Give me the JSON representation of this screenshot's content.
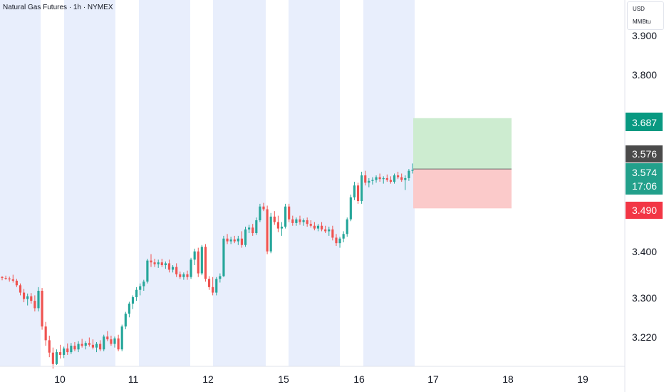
{
  "header": {
    "title": "Natural Gas Futures · 1h · NYMEX",
    "unit_currency": "USD",
    "unit_measure": "MMBtu"
  },
  "colors": {
    "up": "#26a69a",
    "down": "#ef5350",
    "session_band": "#e8eefc",
    "target_zone": "#cdecd0",
    "stop_zone": "#fbcaca",
    "target_label": "#089981",
    "stop_label": "#f23645",
    "entry_label": "#4a4a4a",
    "last_label": "#22a08b"
  },
  "chart_data": {
    "type": "candlestick",
    "timeframe": "1h",
    "x_tick_labels": [
      "10",
      "11",
      "12",
      "15",
      "16",
      "17",
      "18",
      "19"
    ],
    "y_tick_labels": [
      "3.900",
      "3.800",
      "3.400",
      "3.300",
      "3.220"
    ],
    "ylim": [
      3.145,
      3.945
    ],
    "grid": false,
    "price_labels": {
      "target": "3.687",
      "entry": "3.576",
      "last_price": "3.574",
      "countdown": "17:06",
      "stop": "3.490"
    },
    "position": {
      "direction": "long",
      "target": 3.687,
      "entry": 3.576,
      "stop": 3.49
    },
    "candles": [
      [
        3.34,
        3.342,
        3.333,
        3.338
      ],
      [
        3.338,
        3.343,
        3.334,
        3.337
      ],
      [
        3.337,
        3.341,
        3.33,
        3.335
      ],
      [
        3.335,
        3.345,
        3.328,
        3.332
      ],
      [
        3.332,
        3.336,
        3.318,
        3.322
      ],
      [
        3.322,
        3.326,
        3.3,
        3.306
      ],
      [
        3.306,
        3.314,
        3.285,
        3.292
      ],
      [
        3.292,
        3.304,
        3.278,
        3.298
      ],
      [
        3.298,
        3.305,
        3.282,
        3.288
      ],
      [
        3.288,
        3.3,
        3.265,
        3.272
      ],
      [
        3.272,
        3.318,
        3.265,
        3.31
      ],
      [
        3.31,
        3.316,
        3.225,
        3.232
      ],
      [
        3.232,
        3.242,
        3.19,
        3.202
      ],
      [
        3.202,
        3.212,
        3.165,
        3.175
      ],
      [
        3.175,
        3.186,
        3.14,
        3.15
      ],
      [
        3.15,
        3.182,
        3.148,
        3.176
      ],
      [
        3.176,
        3.192,
        3.162,
        3.17
      ],
      [
        3.17,
        3.188,
        3.163,
        3.184
      ],
      [
        3.184,
        3.195,
        3.17,
        3.176
      ],
      [
        3.176,
        3.196,
        3.172,
        3.19
      ],
      [
        3.19,
        3.198,
        3.178,
        3.182
      ],
      [
        3.182,
        3.2,
        3.176,
        3.194
      ],
      [
        3.194,
        3.205,
        3.186,
        3.19
      ],
      [
        3.19,
        3.2,
        3.182,
        3.196
      ],
      [
        3.196,
        3.208,
        3.188,
        3.192
      ],
      [
        3.192,
        3.204,
        3.182,
        3.186
      ],
      [
        3.186,
        3.198,
        3.176,
        3.194
      ],
      [
        3.194,
        3.202,
        3.178,
        3.182
      ],
      [
        3.182,
        3.214,
        3.178,
        3.21
      ],
      [
        3.21,
        3.222,
        3.2,
        3.204
      ],
      [
        3.204,
        3.212,
        3.19,
        3.194
      ],
      [
        3.194,
        3.21,
        3.186,
        3.206
      ],
      [
        3.206,
        3.214,
        3.178,
        3.182
      ],
      [
        3.182,
        3.236,
        3.178,
        3.232
      ],
      [
        3.232,
        3.264,
        3.226,
        3.26
      ],
      [
        3.26,
        3.286,
        3.252,
        3.282
      ],
      [
        3.282,
        3.3,
        3.27,
        3.296
      ],
      [
        3.296,
        3.318,
        3.288,
        3.312
      ],
      [
        3.312,
        3.326,
        3.3,
        3.32
      ],
      [
        3.32,
        3.334,
        3.31,
        3.33
      ],
      [
        3.33,
        3.38,
        3.326,
        3.376
      ],
      [
        3.376,
        3.39,
        3.362,
        3.372
      ],
      [
        3.372,
        3.38,
        3.362,
        3.368
      ],
      [
        3.368,
        3.378,
        3.36,
        3.372
      ],
      [
        3.372,
        3.38,
        3.362,
        3.366
      ],
      [
        3.366,
        3.374,
        3.358,
        3.37
      ],
      [
        3.37,
        3.378,
        3.35,
        3.356
      ],
      [
        3.356,
        3.366,
        3.35,
        3.362
      ],
      [
        3.362,
        3.37,
        3.34,
        3.346
      ],
      [
        3.346,
        3.352,
        3.336,
        3.34
      ],
      [
        3.34,
        3.35,
        3.334,
        3.346
      ],
      [
        3.346,
        3.354,
        3.334,
        3.34
      ],
      [
        3.34,
        3.382,
        3.336,
        3.378
      ],
      [
        3.378,
        3.402,
        3.366,
        3.396
      ],
      [
        3.396,
        3.404,
        3.34,
        3.348
      ],
      [
        3.348,
        3.41,
        3.344,
        3.406
      ],
      [
        3.406,
        3.412,
        3.33,
        3.336
      ],
      [
        3.336,
        3.342,
        3.312,
        3.318
      ],
      [
        3.318,
        3.34,
        3.3,
        3.306
      ],
      [
        3.306,
        3.34,
        3.3,
        3.336
      ],
      [
        3.336,
        3.348,
        3.328,
        3.342
      ],
      [
        3.342,
        3.43,
        3.34,
        3.424
      ],
      [
        3.424,
        3.434,
        3.412,
        3.418
      ],
      [
        3.418,
        3.428,
        3.412,
        3.422
      ],
      [
        3.422,
        3.43,
        3.414,
        3.418
      ],
      [
        3.418,
        3.43,
        3.41,
        3.424
      ],
      [
        3.424,
        3.44,
        3.404,
        3.41
      ],
      [
        3.41,
        3.45,
        3.406,
        3.444
      ],
      [
        3.444,
        3.454,
        3.436,
        3.448
      ],
      [
        3.448,
        3.456,
        3.43,
        3.436
      ],
      [
        3.436,
        3.47,
        3.432,
        3.464
      ],
      [
        3.464,
        3.5,
        3.46,
        3.494
      ],
      [
        3.494,
        3.502,
        3.484,
        3.488
      ],
      [
        3.488,
        3.496,
        3.39,
        3.396
      ],
      [
        3.396,
        3.48,
        3.392,
        3.472
      ],
      [
        3.472,
        3.484,
        3.454,
        3.46
      ],
      [
        3.46,
        3.474,
        3.438,
        3.446
      ],
      [
        3.446,
        3.46,
        3.43,
        3.45
      ],
      [
        3.45,
        3.5,
        3.446,
        3.494
      ],
      [
        3.494,
        3.5,
        3.46,
        3.466
      ],
      [
        3.466,
        3.474,
        3.452,
        3.458
      ],
      [
        3.458,
        3.47,
        3.452,
        3.466
      ],
      [
        3.466,
        3.474,
        3.454,
        3.46
      ],
      [
        3.46,
        3.468,
        3.452,
        3.464
      ],
      [
        3.464,
        3.47,
        3.45,
        3.456
      ],
      [
        3.456,
        3.464,
        3.448,
        3.452
      ],
      [
        3.452,
        3.46,
        3.442,
        3.446
      ],
      [
        3.446,
        3.456,
        3.44,
        3.452
      ],
      [
        3.452,
        3.46,
        3.44,
        3.444
      ],
      [
        3.444,
        3.452,
        3.436,
        3.44
      ],
      [
        3.44,
        3.45,
        3.43,
        3.444
      ],
      [
        3.444,
        3.452,
        3.42,
        3.426
      ],
      [
        3.426,
        3.434,
        3.408,
        3.414
      ],
      [
        3.414,
        3.428,
        3.404,
        3.424
      ],
      [
        3.424,
        3.44,
        3.416,
        3.434
      ],
      [
        3.434,
        3.47,
        3.428,
        3.466
      ],
      [
        3.466,
        3.52,
        3.462,
        3.514
      ],
      [
        3.514,
        3.548,
        3.508,
        3.54
      ],
      [
        3.54,
        3.546,
        3.5,
        3.506
      ],
      [
        3.506,
        3.57,
        3.5,
        3.562
      ],
      [
        3.562,
        3.572,
        3.54,
        3.546
      ],
      [
        3.546,
        3.556,
        3.536,
        3.55
      ],
      [
        3.55,
        3.558,
        3.542,
        3.552
      ],
      [
        3.552,
        3.562,
        3.546,
        3.558
      ],
      [
        3.558,
        3.566,
        3.548,
        3.554
      ],
      [
        3.554,
        3.56,
        3.544,
        3.556
      ],
      [
        3.556,
        3.564,
        3.548,
        3.552
      ],
      [
        3.552,
        3.56,
        3.544,
        3.548
      ],
      [
        3.548,
        3.566,
        3.544,
        3.562
      ],
      [
        3.562,
        3.57,
        3.554,
        3.558
      ],
      [
        3.558,
        3.566,
        3.548,
        3.552
      ],
      [
        3.552,
        3.562,
        3.53,
        3.556
      ],
      [
        3.556,
        3.576,
        3.55,
        3.572
      ],
      [
        3.572,
        3.588,
        3.566,
        3.574
      ]
    ]
  }
}
